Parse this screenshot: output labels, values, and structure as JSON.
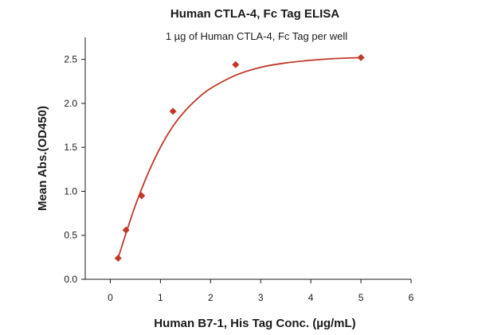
{
  "chart_data": {
    "type": "scatter",
    "title": "Human CTLA-4, Fc Tag ELISA",
    "subtitle": "1 µg of Human CTLA-4, Fc Tag per well",
    "xlabel": "Human B7-1, His Tag Conc. (µg/mL)",
    "ylabel": "Mean Abs.(OD450)",
    "xlim": [
      -0.5,
      6
    ],
    "ylim": [
      0,
      2.75
    ],
    "x_ticks": [
      0,
      1,
      2,
      3,
      4,
      5,
      6
    ],
    "y_ticks": [
      0.0,
      0.5,
      1.0,
      1.5,
      2.0,
      2.5
    ],
    "x_tick_labels": [
      "0",
      "1",
      "2",
      "3",
      "4",
      "5",
      "6"
    ],
    "y_tick_labels": [
      "0.0",
      "0.5",
      "1.0",
      "1.5",
      "2.0",
      "2.5"
    ],
    "grid": false,
    "legend": "none",
    "series": [
      {
        "marker": "diamond",
        "color": "#c0392b",
        "points": [
          {
            "x": 0.156,
            "y": 0.24
          },
          {
            "x": 0.3125,
            "y": 0.56
          },
          {
            "x": 0.625,
            "y": 0.95
          },
          {
            "x": 1.25,
            "y": 1.91
          },
          {
            "x": 2.5,
            "y": 2.44
          },
          {
            "x": 5.0,
            "y": 2.52
          }
        ],
        "fit_curve": {
          "color": "#c0392b",
          "points": [
            {
              "x": 0.156,
              "y": 0.24
            },
            {
              "x": 0.3,
              "y": 0.5
            },
            {
              "x": 0.5,
              "y": 0.84
            },
            {
              "x": 0.75,
              "y": 1.2
            },
            {
              "x": 1.0,
              "y": 1.5
            },
            {
              "x": 1.25,
              "y": 1.74
            },
            {
              "x": 1.5,
              "y": 1.92
            },
            {
              "x": 1.75,
              "y": 2.06
            },
            {
              "x": 2.0,
              "y": 2.17
            },
            {
              "x": 2.5,
              "y": 2.32
            },
            {
              "x": 3.0,
              "y": 2.41
            },
            {
              "x": 3.5,
              "y": 2.46
            },
            {
              "x": 4.0,
              "y": 2.49
            },
            {
              "x": 4.5,
              "y": 2.51
            },
            {
              "x": 5.0,
              "y": 2.52
            }
          ]
        }
      }
    ]
  }
}
